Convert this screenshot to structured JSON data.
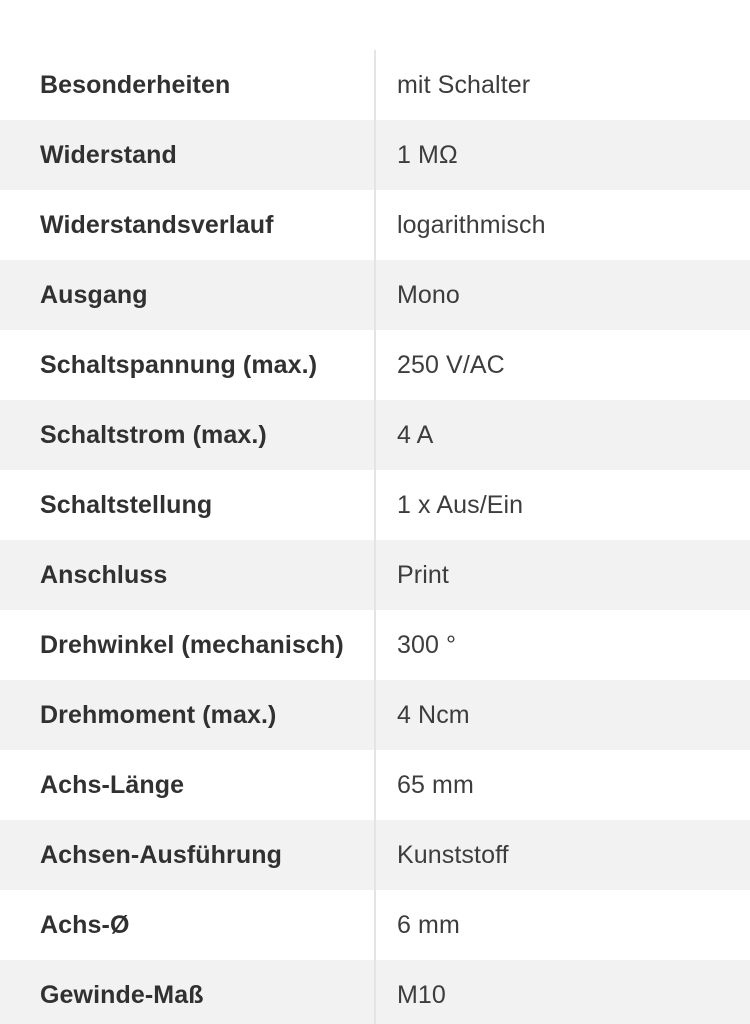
{
  "theme": {
    "stripe": "#f2f2f2",
    "divider": "#e4e4e4",
    "label": "#313131",
    "value": "#3d3d3d",
    "bg": "#ffffff"
  },
  "table": {
    "rows": [
      {
        "label": "Besonderheiten",
        "value": "mit Schalter"
      },
      {
        "label": "Widerstand",
        "value": "1 MΩ"
      },
      {
        "label": "Widerstandsverlauf",
        "value": "logarithmisch"
      },
      {
        "label": "Ausgang",
        "value": "Mono"
      },
      {
        "label": "Schaltspannung (max.)",
        "value": "250 V/AC"
      },
      {
        "label": "Schaltstrom (max.)",
        "value": "4 A"
      },
      {
        "label": "Schaltstellung",
        "value": "1 x Aus/Ein"
      },
      {
        "label": "Anschluss",
        "value": "Print"
      },
      {
        "label": "Drehwinkel (mechanisch)",
        "value": "300 °"
      },
      {
        "label": "Drehmoment (max.)",
        "value": "4 Ncm"
      },
      {
        "label": "Achs-Länge",
        "value": "65 mm"
      },
      {
        "label": "Achsen-Ausführung",
        "value": "Kunststoff"
      },
      {
        "label": "Achs-Ø",
        "value": "6 mm"
      },
      {
        "label": "Gewinde-Maß",
        "value": "M10"
      }
    ]
  }
}
